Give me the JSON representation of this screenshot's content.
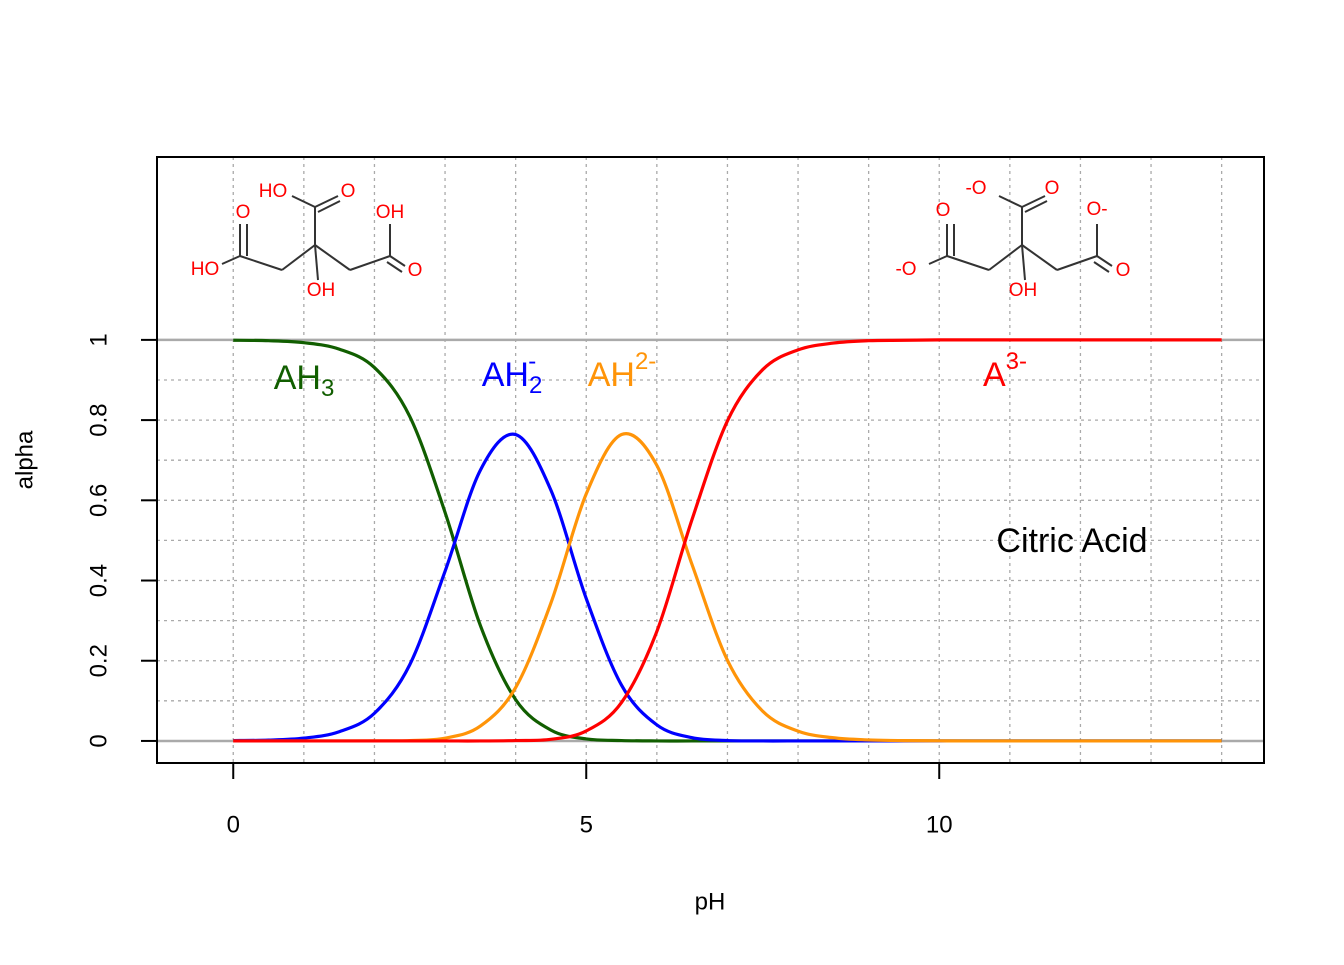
{
  "chart_data": {
    "type": "line",
    "annotation": "Citric Acid",
    "xlabel": "pH",
    "ylabel": "alpha",
    "x": [
      0,
      0.5,
      1,
      1.5,
      2,
      2.5,
      3,
      3.5,
      4,
      4.5,
      5,
      5.5,
      6,
      6.5,
      7,
      7.5,
      8,
      8.5,
      9,
      9.5,
      10,
      10.5,
      11,
      11.5,
      12,
      12.5,
      13,
      13.5,
      14
    ],
    "series": [
      {
        "name": "AH",
        "sub": "3",
        "color": "#115e00",
        "values": [
          0.999,
          0.998,
          0.993,
          0.977,
          0.931,
          0.809,
          0.57,
          0.288,
          0.103,
          0.027,
          0.005,
          0.001,
          0,
          0,
          0,
          0,
          0,
          0,
          0,
          0,
          0,
          0,
          0,
          0,
          0,
          0,
          0,
          0,
          0
        ]
      },
      {
        "name": "AH",
        "sub": "2",
        "sup": "-",
        "color": "#0000ff",
        "values": [
          0.001,
          0.002,
          0.007,
          0.023,
          0.069,
          0.19,
          0.423,
          0.675,
          0.764,
          0.625,
          0.355,
          0.139,
          0.04,
          0.008,
          0.001,
          0,
          0,
          0,
          0,
          0,
          0,
          0,
          0,
          0,
          0,
          0,
          0,
          0,
          0
        ]
      },
      {
        "name": "AH",
        "sup": "2-",
        "color": "#ff9408",
        "values": [
          0,
          0,
          0,
          0,
          0.0001,
          0.001,
          0.007,
          0.037,
          0.133,
          0.344,
          0.616,
          0.764,
          0.687,
          0.439,
          0.201,
          0.074,
          0.0245,
          0.0079,
          0.0025,
          0.0008,
          0.0003,
          0,
          0,
          0,
          0,
          0,
          0,
          0,
          0
        ]
      },
      {
        "name": "A",
        "sup": "3-",
        "color": "#ff0000",
        "values": [
          0,
          0,
          0,
          0,
          0,
          0,
          0,
          0,
          0.001,
          0.004,
          0.025,
          0.096,
          0.273,
          0.553,
          0.798,
          0.926,
          0.975,
          0.992,
          0.998,
          0.999,
          1,
          1,
          1,
          1,
          1,
          1,
          1,
          1,
          1
        ]
      }
    ],
    "xlim": [
      -1.08,
      14.6
    ],
    "ylim": [
      -0.055,
      1.456
    ],
    "xticks": [
      0,
      5,
      10
    ],
    "yticks": [
      0,
      0.2,
      0.4,
      0.6,
      0.8,
      1
    ],
    "xgrid": [
      0,
      1,
      2,
      3,
      4,
      5,
      6,
      7,
      8,
      9,
      10,
      11,
      12,
      13,
      14
    ],
    "ygrid": [
      0,
      0.1,
      0.2,
      0.3,
      0.4,
      0.5,
      0.6,
      0.7,
      0.8,
      0.9,
      1
    ],
    "hlines": [
      0,
      1
    ],
    "structures": [
      {
        "labels": [
          "HO",
          "O",
          "HO",
          "O",
          "OH",
          "O",
          "OH"
        ]
      },
      {
        "labels": [
          "-O",
          "O",
          "-O",
          "O",
          "O-",
          "O",
          "OH"
        ]
      }
    ]
  }
}
